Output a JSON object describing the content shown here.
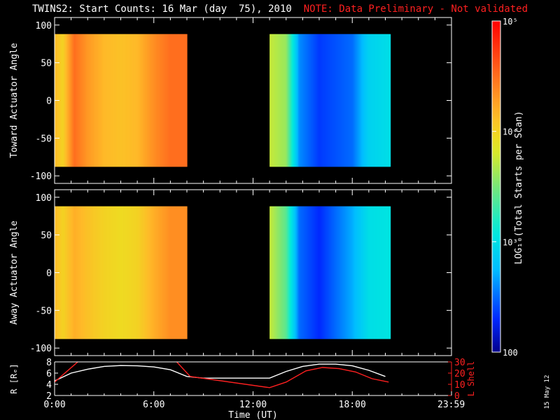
{
  "header": {
    "title": "TWINS2: Start Counts: 16 Mar (day  75), 2010",
    "note": "NOTE: Data Preliminary - Not validated",
    "note_color": "#ff2020"
  },
  "footer": {
    "date_stamp": "15 May 12"
  },
  "chart_data": [
    {
      "type": "heatmap",
      "id": "toward",
      "ylabel": "Toward Actuator Angle",
      "ylim": [
        -110,
        110
      ],
      "yticks": [
        "100",
        "50",
        "0",
        "-50",
        "-100"
      ],
      "ytick_values": [
        100,
        50,
        0,
        -50,
        -100
      ],
      "x_range_hours": [
        0,
        24
      ],
      "data_range_y": [
        -88,
        88
      ],
      "data_blocks_hours": [
        [
          0.0,
          8.0
        ],
        [
          13.0,
          20.3
        ]
      ],
      "colorscale": "log",
      "color_profile_log_counts": [
        [
          0.0,
          4.15
        ],
        [
          0.5,
          4.0
        ],
        [
          1.2,
          4.5
        ],
        [
          2.0,
          4.3
        ],
        [
          3.0,
          4.15
        ],
        [
          4.0,
          4.1
        ],
        [
          5.0,
          4.15
        ],
        [
          6.0,
          4.35
        ],
        [
          7.0,
          4.5
        ],
        [
          8.0,
          4.5
        ],
        [
          13.0,
          3.75
        ],
        [
          14.0,
          3.6
        ],
        [
          14.8,
          2.6
        ],
        [
          16.0,
          2.35
        ],
        [
          18.0,
          2.5
        ],
        [
          19.0,
          2.9
        ],
        [
          20.3,
          3.0
        ]
      ]
    },
    {
      "type": "heatmap",
      "id": "away",
      "ylabel": "Away Actuator Angle",
      "xlabel": "Time (UT)",
      "ylim": [
        -110,
        110
      ],
      "yticks": [
        "100",
        "50",
        "0",
        "-50",
        "-100"
      ],
      "ytick_values": [
        100,
        50,
        0,
        -50,
        -100
      ],
      "x_range_hours": [
        0,
        24
      ],
      "data_range_y": [
        -88,
        88
      ],
      "data_blocks_hours": [
        [
          0.0,
          8.0
        ],
        [
          13.0,
          20.3
        ]
      ],
      "colorscale": "log",
      "color_profile_log_counts": [
        [
          0.0,
          4.15
        ],
        [
          0.5,
          4.0
        ],
        [
          1.2,
          4.2
        ],
        [
          2.0,
          4.1
        ],
        [
          3.0,
          4.0
        ],
        [
          4.0,
          3.95
        ],
        [
          5.0,
          4.0
        ],
        [
          6.0,
          4.2
        ],
        [
          7.0,
          4.35
        ],
        [
          8.0,
          4.35
        ],
        [
          13.0,
          3.75
        ],
        [
          14.0,
          3.4
        ],
        [
          14.8,
          2.5
        ],
        [
          16.0,
          2.3
        ],
        [
          18.0,
          2.7
        ],
        [
          19.0,
          3.0
        ],
        [
          20.3,
          3.05
        ]
      ]
    },
    {
      "type": "line",
      "id": "orbit",
      "x_range_hours": [
        0,
        24
      ],
      "xticks": [
        "0:00",
        "6:00",
        "12:00",
        "18:00",
        "23:59"
      ],
      "xtick_hours": [
        0,
        6,
        12,
        18,
        23.983
      ],
      "xlabel": "Time (UT)",
      "ylabel_left": "R [Rₑ]",
      "ylim_left": [
        2,
        8
      ],
      "yticks_left": [
        "8",
        "6",
        "4",
        "2"
      ],
      "ylabel_right": "L Shell",
      "ylim_right": [
        0,
        30
      ],
      "yticks_right": [
        "30",
        "20",
        "10",
        "0"
      ],
      "right_color": "#ff2020",
      "series": [
        {
          "axis": "left",
          "color": "#ffffff",
          "x": [
            0,
            1,
            2,
            3,
            4,
            5,
            6,
            7,
            8,
            9,
            10,
            11,
            12,
            13,
            14,
            15,
            16,
            17,
            18,
            19,
            20
          ],
          "y": [
            4.6,
            6.0,
            6.7,
            7.2,
            7.35,
            7.3,
            7.1,
            6.6,
            5.4,
            5.1,
            5.1,
            5.1,
            5.1,
            5.1,
            6.3,
            7.2,
            7.6,
            7.6,
            7.3,
            6.5,
            5.4
          ]
        },
        {
          "axis": "right",
          "color": "#ff2020",
          "x": [
            0,
            1.4,
            1.9,
            7.2,
            8.2,
            13.0,
            14.0,
            15.2,
            16.2,
            17.2,
            18.2,
            19.2,
            20.2
          ],
          "y": [
            12,
            30,
            33,
            33,
            17,
            7,
            12,
            22,
            25,
            24,
            21,
            15,
            12
          ]
        }
      ]
    }
  ],
  "colorbar": {
    "label": "LOG₁₀(Total Starts per Scan)",
    "scale": "log",
    "range_log": [
      2,
      5
    ],
    "tick_labels": [
      "10⁵",
      "10⁴",
      "10³",
      "100"
    ],
    "tick_values_log": [
      5,
      4,
      3,
      2
    ]
  }
}
